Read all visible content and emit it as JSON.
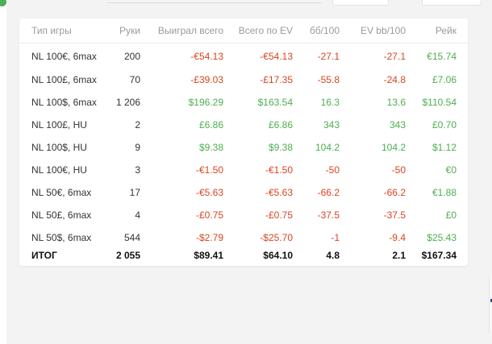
{
  "table": {
    "headers": [
      "Тип игры",
      "Руки",
      "Выиграл всего",
      "Всего по EV",
      "бб/100",
      "EV bb/100",
      "Рейк"
    ],
    "rows": [
      {
        "game": "NL 100€, 6max",
        "hands": "200",
        "won": "-€54.13",
        "ev": "-€54.13",
        "bb100": "-27.1",
        "evbb100": "-27.1",
        "rake": "€15.74",
        "signs": [
          "neg",
          "neg",
          "neg",
          "neg",
          "pos"
        ]
      },
      {
        "game": "NL 100£, 6max",
        "hands": "70",
        "won": "-£39.03",
        "ev": "-£17.35",
        "bb100": "-55.8",
        "evbb100": "-24.8",
        "rake": "£7.06",
        "signs": [
          "neg",
          "neg",
          "neg",
          "neg",
          "pos"
        ]
      },
      {
        "game": "NL 100$, 6max",
        "hands": "1 206",
        "won": "$196.29",
        "ev": "$163.54",
        "bb100": "16.3",
        "evbb100": "13.6",
        "rake": "$110.54",
        "signs": [
          "pos",
          "pos",
          "pos",
          "pos",
          "pos"
        ]
      },
      {
        "game": "NL 100£, HU",
        "hands": "2",
        "won": "£6.86",
        "ev": "£6.86",
        "bb100": "343",
        "evbb100": "343",
        "rake": "£0.70",
        "signs": [
          "pos",
          "pos",
          "pos",
          "pos",
          "pos"
        ]
      },
      {
        "game": "NL 100$, HU",
        "hands": "9",
        "won": "$9.38",
        "ev": "$9.38",
        "bb100": "104.2",
        "evbb100": "104.2",
        "rake": "$1.12",
        "signs": [
          "pos",
          "pos",
          "pos",
          "pos",
          "pos"
        ]
      },
      {
        "game": "NL 100€, HU",
        "hands": "3",
        "won": "-€1.50",
        "ev": "-€1.50",
        "bb100": "-50",
        "evbb100": "-50",
        "rake": "€0",
        "signs": [
          "neg",
          "neg",
          "neg",
          "neg",
          "pos"
        ]
      },
      {
        "game": "NL 50€, 6max",
        "hands": "17",
        "won": "-€5.63",
        "ev": "-€5.63",
        "bb100": "-66.2",
        "evbb100": "-66.2",
        "rake": "€1.88",
        "signs": [
          "neg",
          "neg",
          "neg",
          "neg",
          "pos"
        ]
      },
      {
        "game": "NL 50£, 6max",
        "hands": "4",
        "won": "-£0.75",
        "ev": "-£0.75",
        "bb100": "-37.5",
        "evbb100": "-37.5",
        "rake": "£0",
        "signs": [
          "neg",
          "neg",
          "neg",
          "neg",
          "pos"
        ]
      },
      {
        "game": "NL 50$, 6max",
        "hands": "544",
        "won": "-$2.79",
        "ev": "-$25.70",
        "bb100": "-1",
        "evbb100": "-9.4",
        "rake": "$25.43",
        "signs": [
          "neg",
          "neg",
          "neg",
          "neg",
          "pos"
        ]
      }
    ],
    "total": {
      "game": "ИТОГ",
      "hands": "2 055",
      "won": "$89.41",
      "ev": "$64.10",
      "bb100": "4.8",
      "evbb100": "2.1",
      "rake": "$167.34"
    }
  },
  "colors": {
    "negative": "#d9451f",
    "positive": "#4caf50",
    "header": "#9a9a9a"
  }
}
